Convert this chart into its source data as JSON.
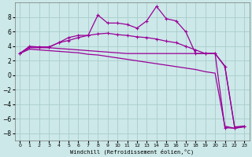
{
  "xlabel": "Windchill (Refroidissement éolien,°C)",
  "bg_color": "#cce8e8",
  "grid_color": "#aacccc",
  "line_color": "#990099",
  "xlim": [
    -0.5,
    23.5
  ],
  "ylim": [
    -9,
    10
  ],
  "yticks": [
    -8,
    -6,
    -4,
    -2,
    0,
    2,
    4,
    6,
    8
  ],
  "xticks": [
    0,
    1,
    2,
    3,
    4,
    5,
    6,
    7,
    8,
    9,
    10,
    11,
    12,
    13,
    14,
    15,
    16,
    17,
    18,
    19,
    20,
    21,
    22,
    23
  ],
  "line1_x": [
    0,
    1,
    2,
    3,
    4,
    5,
    6,
    7,
    8,
    9,
    10,
    11,
    12,
    13,
    14,
    15,
    16,
    17,
    18,
    19,
    20,
    21,
    22,
    23
  ],
  "line1_y": [
    3.0,
    4.0,
    3.9,
    3.9,
    4.5,
    5.2,
    5.5,
    5.5,
    8.3,
    7.2,
    7.2,
    7.0,
    6.5,
    7.5,
    9.5,
    7.8,
    7.5,
    6.0,
    3.0,
    3.0,
    3.0,
    1.2,
    -7.2,
    -7.0
  ],
  "line2_x": [
    0,
    1,
    2,
    3,
    4,
    5,
    6,
    7,
    8,
    9,
    10,
    11,
    12,
    13,
    14,
    15,
    16,
    17,
    18,
    19,
    20,
    21,
    22,
    23
  ],
  "line2_y": [
    3.0,
    3.9,
    3.9,
    3.9,
    4.5,
    4.8,
    5.2,
    5.5,
    5.7,
    5.8,
    5.6,
    5.5,
    5.3,
    5.2,
    5.0,
    4.7,
    4.5,
    4.0,
    3.5,
    3.0,
    3.0,
    -7.2,
    -7.3,
    -7.0
  ],
  "line3_x": [
    0,
    1,
    2,
    3,
    4,
    5,
    6,
    7,
    8,
    9,
    10,
    11,
    12,
    13,
    14,
    15,
    16,
    17,
    18,
    19,
    20,
    21,
    22,
    23
  ],
  "line3_y": [
    3.0,
    3.8,
    3.8,
    3.8,
    3.7,
    3.6,
    3.5,
    3.4,
    3.3,
    3.2,
    3.1,
    3.0,
    3.0,
    3.0,
    3.0,
    3.0,
    3.0,
    3.0,
    3.0,
    3.0,
    3.0,
    1.3,
    -7.1,
    -7.0
  ],
  "line4_x": [
    0,
    1,
    2,
    3,
    4,
    5,
    6,
    7,
    8,
    9,
    10,
    11,
    12,
    13,
    14,
    15,
    16,
    17,
    18,
    19,
    20,
    21,
    22,
    23
  ],
  "line4_y": [
    3.0,
    3.6,
    3.5,
    3.4,
    3.3,
    3.2,
    3.1,
    2.9,
    2.8,
    2.6,
    2.4,
    2.2,
    2.0,
    1.8,
    1.6,
    1.4,
    1.2,
    1.0,
    0.8,
    0.5,
    0.3,
    -7.0,
    -7.3,
    -7.1
  ]
}
